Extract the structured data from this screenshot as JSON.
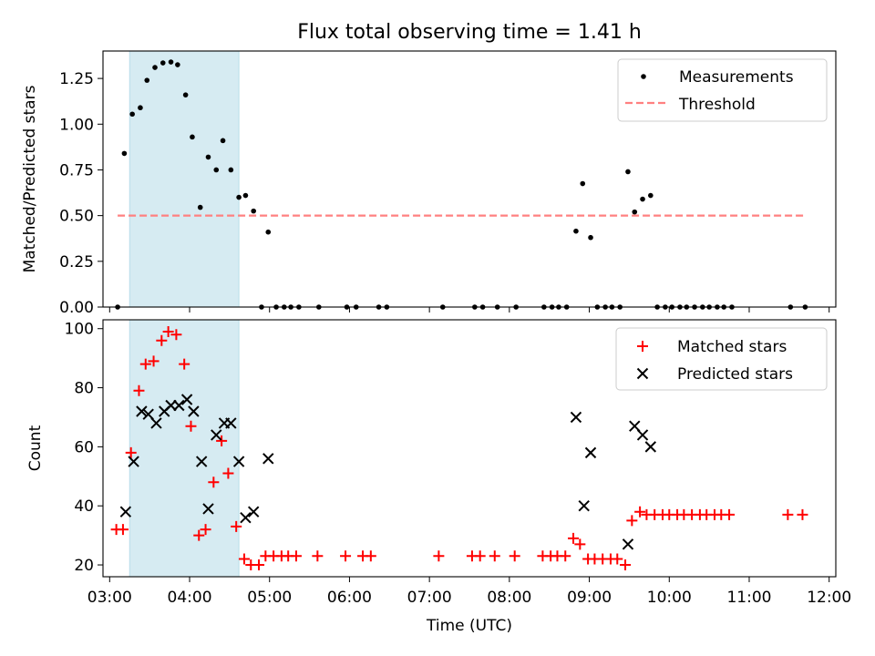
{
  "title": "Flux total observing time = 1.41 h",
  "colors": {
    "highlight": "#add8e6",
    "matched": "#ff0000",
    "predicted": "#000000",
    "threshold": "#ff8080",
    "measurement": "#000000"
  },
  "chart_data": [
    {
      "type": "scatter",
      "ylabel": "Matched/Predicted stars",
      "ylim": [
        0,
        1.4
      ],
      "xlim": [
        "02:55",
        "12:05"
      ],
      "ytick_labels": [
        "0.00",
        "0.25",
        "0.50",
        "0.75",
        "1.00",
        "1.25"
      ],
      "grid": false,
      "legend": "top-right",
      "highlight_span": [
        "03:15",
        "04:37"
      ],
      "threshold": {
        "name": "Threshold",
        "value": 0.5,
        "x_range": [
          "03:06",
          "11:42"
        ]
      },
      "series": [
        {
          "name": "Measurements",
          "points": [
            [
              "03:06",
              0.0
            ],
            [
              "03:11",
              0.84
            ],
            [
              "03:17",
              1.055
            ],
            [
              "03:23",
              1.09
            ],
            [
              "03:28",
              1.24
            ],
            [
              "03:34",
              1.31
            ],
            [
              "03:40",
              1.335
            ],
            [
              "03:46",
              1.34
            ],
            [
              "03:51",
              1.325
            ],
            [
              "03:57",
              1.16
            ],
            [
              "04:02",
              0.93
            ],
            [
              "04:08",
              0.545
            ],
            [
              "04:14",
              0.82
            ],
            [
              "04:20",
              0.75
            ],
            [
              "04:25",
              0.91
            ],
            [
              "04:31",
              0.75
            ],
            [
              "04:37",
              0.6
            ],
            [
              "04:42",
              0.61
            ],
            [
              "04:48",
              0.525
            ],
            [
              "04:54",
              0.0
            ],
            [
              "04:59",
              0.41
            ],
            [
              "05:05",
              0.0
            ],
            [
              "05:11",
              0.0
            ],
            [
              "05:16",
              0.0
            ],
            [
              "05:22",
              0.0
            ],
            [
              "05:37",
              0.0
            ],
            [
              "05:58",
              0.0
            ],
            [
              "06:05",
              0.0
            ],
            [
              "06:22",
              0.0
            ],
            [
              "06:28",
              0.0
            ],
            [
              "07:10",
              0.0
            ],
            [
              "07:34",
              0.0
            ],
            [
              "07:40",
              0.0
            ],
            [
              "07:51",
              0.0
            ],
            [
              "08:05",
              0.0
            ],
            [
              "08:26",
              0.0
            ],
            [
              "08:32",
              0.0
            ],
            [
              "08:37",
              0.0
            ],
            [
              "08:43",
              0.0
            ],
            [
              "08:50",
              0.415
            ],
            [
              "08:55",
              0.675
            ],
            [
              "09:01",
              0.38
            ],
            [
              "09:06",
              0.0
            ],
            [
              "09:12",
              0.0
            ],
            [
              "09:17",
              0.0
            ],
            [
              "09:23",
              0.0
            ],
            [
              "09:29",
              0.74
            ],
            [
              "09:34",
              0.52
            ],
            [
              "09:40",
              0.59
            ],
            [
              "09:46",
              0.61
            ],
            [
              "09:51",
              0.0
            ],
            [
              "09:57",
              0.0
            ],
            [
              "10:02",
              0.0
            ],
            [
              "10:08",
              0.0
            ],
            [
              "10:13",
              0.0
            ],
            [
              "10:19",
              0.0
            ],
            [
              "10:25",
              0.0
            ],
            [
              "10:30",
              0.0
            ],
            [
              "10:36",
              0.0
            ],
            [
              "10:41",
              0.0
            ],
            [
              "10:47",
              0.0
            ],
            [
              "11:31",
              0.0
            ],
            [
              "11:42",
              0.0
            ]
          ]
        }
      ]
    },
    {
      "type": "scatter",
      "xlabel": "Time (UTC)",
      "ylabel": "Count",
      "ylim": [
        16,
        103
      ],
      "xlim": [
        "02:55",
        "12:05"
      ],
      "ytick_labels": [
        "20",
        "40",
        "60",
        "80",
        "100"
      ],
      "xtick_labels": [
        "03:00",
        "04:00",
        "05:00",
        "06:00",
        "07:00",
        "08:00",
        "09:00",
        "10:00",
        "11:00",
        "12:00"
      ],
      "grid": false,
      "legend": "top-right",
      "highlight_span": [
        "03:15",
        "04:37"
      ],
      "series": [
        {
          "name": "Matched stars",
          "marker": "plus",
          "points": [
            [
              "03:05",
              32
            ],
            [
              "03:10",
              32
            ],
            [
              "03:16",
              58
            ],
            [
              "03:22",
              79
            ],
            [
              "03:27",
              88
            ],
            [
              "03:33",
              89
            ],
            [
              "03:39",
              96
            ],
            [
              "03:44",
              99
            ],
            [
              "03:50",
              98
            ],
            [
              "03:56",
              88
            ],
            [
              "04:01",
              67
            ],
            [
              "04:07",
              30
            ],
            [
              "04:12",
              32
            ],
            [
              "04:18",
              48
            ],
            [
              "04:24",
              62
            ],
            [
              "04:29",
              51
            ],
            [
              "04:35",
              33
            ],
            [
              "04:41",
              22
            ],
            [
              "04:46",
              20
            ],
            [
              "04:52",
              20
            ],
            [
              "04:57",
              23
            ],
            [
              "05:03",
              23
            ],
            [
              "05:09",
              23
            ],
            [
              "05:14",
              23
            ],
            [
              "05:20",
              23
            ],
            [
              "05:36",
              23
            ],
            [
              "05:57",
              23
            ],
            [
              "06:10",
              23
            ],
            [
              "06:16",
              23
            ],
            [
              "07:07",
              23
            ],
            [
              "07:32",
              23
            ],
            [
              "07:38",
              23
            ],
            [
              "07:49",
              23
            ],
            [
              "08:04",
              23
            ],
            [
              "08:25",
              23
            ],
            [
              "08:31",
              23
            ],
            [
              "08:36",
              23
            ],
            [
              "08:42",
              23
            ],
            [
              "08:48",
              29
            ],
            [
              "08:53",
              27
            ],
            [
              "08:59",
              22
            ],
            [
              "09:04",
              22
            ],
            [
              "09:10",
              22
            ],
            [
              "09:16",
              22
            ],
            [
              "09:21",
              22
            ],
            [
              "09:27",
              20
            ],
            [
              "09:32",
              35
            ],
            [
              "09:38",
              38
            ],
            [
              "09:43",
              37
            ],
            [
              "09:49",
              37
            ],
            [
              "09:55",
              37
            ],
            [
              "10:00",
              37
            ],
            [
              "10:06",
              37
            ],
            [
              "10:11",
              37
            ],
            [
              "10:17",
              37
            ],
            [
              "10:23",
              37
            ],
            [
              "10:28",
              37
            ],
            [
              "10:34",
              37
            ],
            [
              "10:39",
              37
            ],
            [
              "10:45",
              37
            ],
            [
              "11:29",
              37
            ],
            [
              "11:40",
              37
            ]
          ]
        },
        {
          "name": "Predicted stars",
          "marker": "x",
          "points": [
            [
              "03:12",
              38
            ],
            [
              "03:18",
              55
            ],
            [
              "03:24",
              72
            ],
            [
              "03:29",
              71
            ],
            [
              "03:35",
              68
            ],
            [
              "03:41",
              72
            ],
            [
              "03:46",
              74
            ],
            [
              "03:52",
              74
            ],
            [
              "03:58",
              76
            ],
            [
              "04:03",
              72
            ],
            [
              "04:09",
              55
            ],
            [
              "04:14",
              39
            ],
            [
              "04:20",
              64
            ],
            [
              "04:26",
              68
            ],
            [
              "04:31",
              68
            ],
            [
              "04:37",
              55
            ],
            [
              "04:42",
              36
            ],
            [
              "04:48",
              38
            ],
            [
              "04:59",
              56
            ],
            [
              "08:50",
              70
            ],
            [
              "08:56",
              40
            ],
            [
              "09:01",
              58
            ],
            [
              "09:29",
              27
            ],
            [
              "09:34",
              67
            ],
            [
              "09:40",
              64
            ],
            [
              "09:46",
              60
            ]
          ]
        }
      ]
    }
  ]
}
